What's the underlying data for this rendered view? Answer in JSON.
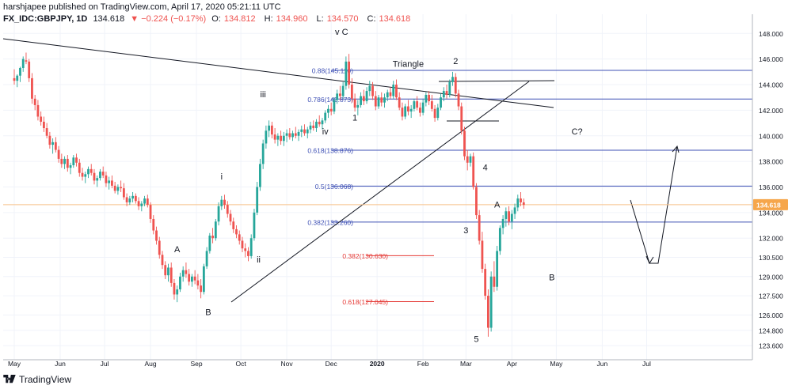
{
  "header": {
    "publisher_line": "harshjapee published on TradingView.com, April 17, 2020 05:21:11 UTC",
    "symbol": "FX_IDC:GBPJPY, 1D",
    "last": "134.618",
    "change": "▼ −0.224 (−0.17%)",
    "o_label": "O:",
    "o_value": "134.812",
    "h_label": "H:",
    "h_value": "134.960",
    "l_label": "L:",
    "l_value": "134.570",
    "c_label": "C:",
    "c_value": "134.618"
  },
  "footer": {
    "brand": "TradingView"
  },
  "colors": {
    "up": "#26a69a",
    "down": "#ef5350",
    "fib_blue": "#3f51b5",
    "fib_red": "#e53935",
    "price_line": "#f8c28a",
    "price_tag": "#f6a64b",
    "trendline": "#131722",
    "grid": "#f0f3fa"
  },
  "chart_data": {
    "type": "candlestick",
    "title": "",
    "price_axis": {
      "min": 122.5,
      "max": 149.5,
      "ticks": [
        "148.000",
        "146.000",
        "144.000",
        "142.000",
        "140.000",
        "138.000",
        "136.000",
        "134.000",
        "132.000",
        "130.500",
        "129.000",
        "127.500",
        "126.000",
        "124.800",
        "123.600"
      ]
    },
    "time_axis": {
      "labels": [
        "May",
        "Jun",
        "Jul",
        "Aug",
        "Sep",
        "Oct",
        "Nov",
        "Dec",
        "2020",
        "Feb",
        "Mar",
        "Apr",
        "May",
        "Jun",
        "Jul"
      ],
      "label_days": [
        0,
        31,
        61,
        92,
        123,
        153,
        184,
        214,
        245,
        276,
        305,
        336,
        366,
        397,
        427
      ]
    },
    "last_price": {
      "value": 134.618,
      "label": "134.618"
    },
    "fib_levels": [
      {
        "label": "0.88(145.110)",
        "value": 145.11,
        "color": "blue"
      },
      {
        "label": "0.786(142.873)",
        "value": 142.873,
        "color": "blue"
      },
      {
        "label": "0.618(138.876)",
        "value": 138.876,
        "color": "blue"
      },
      {
        "label": "0.5(136.068)",
        "value": 136.068,
        "color": "blue"
      },
      {
        "label": "0.382(133.260)",
        "value": 133.26,
        "color": "blue"
      },
      {
        "label": "0.382(130.630)",
        "value": 130.63,
        "color": "red"
      },
      {
        "label": "0.618(127.045)",
        "value": 127.045,
        "color": "red"
      }
    ],
    "wave_labels": [
      {
        "text": "v C",
        "day": 221,
        "price": 147.9
      },
      {
        "text": "Triangle",
        "day": 266,
        "price": 145.4
      },
      {
        "text": "2",
        "day": 298,
        "price": 145.6
      },
      {
        "text": "iii",
        "day": 168,
        "price": 143.0
      },
      {
        "text": "1",
        "day": 230,
        "price": 141.2
      },
      {
        "text": "iv",
        "day": 210,
        "price": 140.1
      },
      {
        "text": "i",
        "day": 140,
        "price": 136.6
      },
      {
        "text": "4",
        "day": 318,
        "price": 137.3
      },
      {
        "text": "C?",
        "day": 380,
        "price": 140.1
      },
      {
        "text": "A",
        "day": 326,
        "price": 134.4
      },
      {
        "text": "A",
        "day": 110,
        "price": 130.9
      },
      {
        "text": "3",
        "day": 305,
        "price": 132.4
      },
      {
        "text": "ii",
        "day": 165,
        "price": 130.1
      },
      {
        "text": "B",
        "day": 363,
        "price": 128.7
      },
      {
        "text": "B",
        "day": 131,
        "price": 126.0
      },
      {
        "text": "5",
        "day": 312,
        "price": 123.9
      }
    ],
    "candles": [
      [
        0,
        144.5,
        145.2,
        144.0,
        144.3
      ],
      [
        2,
        144.3,
        144.8,
        143.8,
        144.7
      ],
      [
        4,
        144.7,
        145.4,
        144.2,
        145.3
      ],
      [
        6,
        145.3,
        146.2,
        145.0,
        146.0
      ],
      [
        8,
        145.9,
        146.5,
        145.6,
        145.8
      ],
      [
        10,
        145.8,
        146.0,
        144.2,
        144.5
      ],
      [
        12,
        144.5,
        144.9,
        142.5,
        142.9
      ],
      [
        14,
        142.9,
        143.2,
        142.0,
        142.4
      ],
      [
        16,
        142.4,
        142.8,
        141.2,
        141.5
      ],
      [
        18,
        141.5,
        141.9,
        140.8,
        141.1
      ],
      [
        20,
        141.1,
        141.5,
        140.3,
        140.6
      ],
      [
        22,
        140.6,
        141.0,
        139.8,
        140.0
      ],
      [
        24,
        140.0,
        140.3,
        139.0,
        139.3
      ],
      [
        26,
        139.3,
        139.8,
        138.6,
        139.5
      ],
      [
        28,
        139.5,
        139.9,
        138.7,
        138.9
      ],
      [
        30,
        138.9,
        139.2,
        137.9,
        138.2
      ],
      [
        32,
        138.2,
        138.6,
        137.5,
        137.8
      ],
      [
        34,
        137.8,
        138.4,
        137.4,
        138.2
      ],
      [
        36,
        138.2,
        138.5,
        137.2,
        137.5
      ],
      [
        38,
        137.5,
        137.9,
        137.0,
        137.7
      ],
      [
        40,
        137.7,
        138.5,
        137.5,
        138.3
      ],
      [
        42,
        138.3,
        138.6,
        137.6,
        137.9
      ],
      [
        44,
        137.9,
        138.2,
        136.8,
        137.1
      ],
      [
        46,
        137.1,
        137.5,
        136.5,
        136.8
      ],
      [
        48,
        136.8,
        137.2,
        136.3,
        137.0
      ],
      [
        50,
        137.0,
        137.6,
        136.7,
        137.4
      ],
      [
        52,
        137.4,
        137.8,
        136.9,
        137.1
      ],
      [
        54,
        137.1,
        137.4,
        136.2,
        136.5
      ],
      [
        56,
        136.5,
        136.9,
        136.0,
        136.7
      ],
      [
        58,
        136.7,
        137.4,
        136.5,
        137.2
      ],
      [
        60,
        137.2,
        137.6,
        136.7,
        136.9
      ],
      [
        62,
        136.9,
        137.2,
        136.0,
        136.3
      ],
      [
        64,
        136.3,
        136.8,
        135.8,
        136.5
      ],
      [
        66,
        136.5,
        136.9,
        135.9,
        136.1
      ],
      [
        68,
        136.1,
        136.4,
        135.5,
        135.7
      ],
      [
        70,
        135.7,
        136.2,
        135.4,
        136.0
      ],
      [
        72,
        136.0,
        136.5,
        135.6,
        135.9
      ],
      [
        74,
        135.9,
        136.3,
        135.0,
        135.2
      ],
      [
        76,
        135.2,
        135.5,
        134.5,
        134.8
      ],
      [
        78,
        134.8,
        135.3,
        134.6,
        135.1
      ],
      [
        80,
        135.1,
        135.6,
        134.8,
        135.3
      ],
      [
        82,
        135.3,
        135.5,
        134.7,
        134.9
      ],
      [
        84,
        134.9,
        135.2,
        134.2,
        134.5
      ],
      [
        86,
        134.5,
        134.9,
        134.1,
        134.7
      ],
      [
        88,
        134.7,
        135.3,
        134.5,
        135.1
      ],
      [
        90,
        135.1,
        135.4,
        134.4,
        134.6
      ],
      [
        92,
        134.6,
        134.8,
        133.2,
        133.5
      ],
      [
        94,
        133.5,
        133.8,
        132.3,
        132.6
      ],
      [
        96,
        132.6,
        132.9,
        131.5,
        131.8
      ],
      [
        98,
        131.8,
        132.1,
        130.4,
        130.7
      ],
      [
        100,
        130.7,
        131.0,
        129.6,
        129.9
      ],
      [
        102,
        129.9,
        130.2,
        128.8,
        129.1
      ],
      [
        104,
        129.1,
        130.0,
        128.6,
        129.7
      ],
      [
        106,
        129.7,
        130.1,
        128.2,
        128.5
      ],
      [
        108,
        128.5,
        128.8,
        127.2,
        127.6
      ],
      [
        110,
        127.6,
        128.3,
        127.0,
        128.0
      ],
      [
        112,
        128.0,
        129.3,
        127.8,
        129.0
      ],
      [
        114,
        129.0,
        129.8,
        128.6,
        129.5
      ],
      [
        116,
        129.5,
        130.1,
        128.9,
        129.2
      ],
      [
        118,
        129.2,
        129.6,
        128.3,
        128.6
      ],
      [
        120,
        128.6,
        129.2,
        128.2,
        129.0
      ],
      [
        122,
        129.0,
        129.5,
        128.4,
        128.7
      ],
      [
        124,
        128.7,
        129.2,
        128.0,
        128.3
      ],
      [
        126,
        128.3,
        128.8,
        127.3,
        127.8
      ],
      [
        128,
        127.8,
        130.0,
        127.6,
        129.8
      ],
      [
        130,
        129.8,
        131.3,
        129.6,
        131.0
      ],
      [
        132,
        131.0,
        132.4,
        130.8,
        132.2
      ],
      [
        134,
        132.2,
        132.8,
        131.6,
        132.0
      ],
      [
        136,
        132.0,
        133.5,
        131.8,
        133.3
      ],
      [
        138,
        133.3,
        134.8,
        133.0,
        134.5
      ],
      [
        140,
        134.5,
        135.3,
        134.2,
        135.0
      ],
      [
        142,
        135.0,
        135.4,
        134.3,
        134.6
      ],
      [
        144,
        134.6,
        134.9,
        133.6,
        133.9
      ],
      [
        146,
        133.9,
        134.2,
        133.0,
        133.3
      ],
      [
        148,
        133.3,
        133.6,
        132.4,
        132.7
      ],
      [
        150,
        132.7,
        133.0,
        132.0,
        132.3
      ],
      [
        152,
        132.3,
        132.6,
        131.5,
        131.8
      ],
      [
        154,
        131.8,
        132.1,
        130.9,
        131.2
      ],
      [
        156,
        131.2,
        131.6,
        130.5,
        131.0
      ],
      [
        158,
        131.0,
        131.3,
        130.2,
        130.6
      ],
      [
        160,
        130.6,
        132.3,
        130.4,
        132.0
      ],
      [
        162,
        132.0,
        134.3,
        131.8,
        134.0
      ],
      [
        164,
        134.0,
        136.4,
        133.8,
        136.0
      ],
      [
        166,
        136.0,
        138.2,
        135.7,
        137.8
      ],
      [
        168,
        137.8,
        139.7,
        137.4,
        139.4
      ],
      [
        170,
        139.4,
        140.8,
        139.0,
        140.4
      ],
      [
        172,
        140.4,
        141.2,
        139.9,
        140.8
      ],
      [
        174,
        140.8,
        141.1,
        139.8,
        140.1
      ],
      [
        176,
        140.1,
        140.6,
        139.4,
        139.7
      ],
      [
        178,
        139.7,
        140.2,
        139.2,
        140.0
      ],
      [
        180,
        140.0,
        140.4,
        139.3,
        139.6
      ],
      [
        182,
        139.6,
        140.3,
        139.2,
        140.0
      ],
      [
        184,
        140.0,
        140.5,
        139.5,
        140.2
      ],
      [
        186,
        140.2,
        140.6,
        139.7,
        139.9
      ],
      [
        188,
        139.9,
        140.4,
        139.6,
        140.2
      ],
      [
        190,
        140.2,
        140.7,
        139.8,
        140.0
      ],
      [
        192,
        140.0,
        140.5,
        139.6,
        140.3
      ],
      [
        194,
        140.3,
        140.8,
        139.9,
        140.5
      ],
      [
        196,
        140.5,
        140.9,
        140.0,
        140.2
      ],
      [
        198,
        140.2,
        140.7,
        139.8,
        140.5
      ],
      [
        200,
        140.5,
        141.1,
        140.2,
        140.8
      ],
      [
        202,
        140.8,
        141.2,
        140.4,
        140.6
      ],
      [
        204,
        140.6,
        141.3,
        140.3,
        141.1
      ],
      [
        206,
        141.1,
        141.6,
        140.7,
        140.9
      ],
      [
        208,
        140.9,
        141.4,
        140.5,
        141.2
      ],
      [
        210,
        141.2,
        142.0,
        141.0,
        141.8
      ],
      [
        212,
        141.8,
        142.4,
        141.4,
        142.1
      ],
      [
        214,
        142.1,
        142.6,
        141.6,
        141.9
      ],
      [
        216,
        141.9,
        143.0,
        141.7,
        142.8
      ],
      [
        218,
        142.8,
        143.6,
        142.5,
        143.3
      ],
      [
        220,
        143.3,
        143.9,
        142.8,
        143.1
      ],
      [
        222,
        143.1,
        144.2,
        142.9,
        143.9
      ],
      [
        224,
        143.9,
        146.2,
        143.6,
        145.8
      ],
      [
        226,
        145.8,
        146.4,
        143.7,
        144.0
      ],
      [
        228,
        144.0,
        144.5,
        142.6,
        142.9
      ],
      [
        230,
        142.9,
        143.3,
        141.9,
        142.2
      ],
      [
        232,
        142.2,
        142.8,
        141.6,
        142.4
      ],
      [
        234,
        142.4,
        143.4,
        142.2,
        143.1
      ],
      [
        236,
        143.1,
        143.6,
        142.4,
        142.7
      ],
      [
        238,
        142.7,
        143.8,
        142.5,
        143.5
      ],
      [
        240,
        143.5,
        144.3,
        143.1,
        143.9
      ],
      [
        242,
        143.9,
        144.2,
        142.8,
        143.1
      ],
      [
        244,
        143.1,
        143.5,
        142.0,
        142.3
      ],
      [
        246,
        142.3,
        143.2,
        142.1,
        143.0
      ],
      [
        248,
        143.0,
        143.4,
        142.3,
        142.6
      ],
      [
        250,
        142.6,
        143.3,
        142.2,
        143.0
      ],
      [
        252,
        143.0,
        143.6,
        142.7,
        143.4
      ],
      [
        254,
        143.4,
        143.8,
        142.9,
        143.1
      ],
      [
        256,
        143.1,
        144.3,
        142.9,
        144.0
      ],
      [
        258,
        144.0,
        144.4,
        142.8,
        143.0
      ],
      [
        260,
        143.0,
        143.4,
        142.0,
        142.2
      ],
      [
        262,
        142.2,
        142.6,
        141.2,
        141.5
      ],
      [
        264,
        141.5,
        142.5,
        141.3,
        142.3
      ],
      [
        266,
        142.3,
        142.8,
        141.6,
        141.9
      ],
      [
        268,
        141.9,
        142.4,
        141.4,
        142.1
      ],
      [
        270,
        142.1,
        142.9,
        141.9,
        142.7
      ],
      [
        272,
        142.7,
        143.1,
        142.0,
        142.2
      ],
      [
        274,
        142.2,
        142.6,
        141.5,
        141.8
      ],
      [
        276,
        141.8,
        142.9,
        141.6,
        142.6
      ],
      [
        278,
        142.6,
        143.4,
        142.3,
        143.2
      ],
      [
        280,
        143.2,
        143.5,
        142.4,
        142.7
      ],
      [
        282,
        142.7,
        143.2,
        141.9,
        142.1
      ],
      [
        284,
        142.1,
        142.4,
        141.1,
        141.4
      ],
      [
        286,
        141.4,
        142.5,
        141.2,
        142.2
      ],
      [
        288,
        142.2,
        143.3,
        142.0,
        143.0
      ],
      [
        290,
        143.0,
        143.8,
        142.7,
        143.5
      ],
      [
        292,
        143.5,
        144.0,
        142.9,
        143.2
      ],
      [
        294,
        143.2,
        144.4,
        143.0,
        144.2
      ],
      [
        296,
        144.2,
        145.0,
        143.9,
        144.6
      ],
      [
        298,
        144.6,
        144.9,
        143.0,
        143.3
      ],
      [
        300,
        143.3,
        143.6,
        142.0,
        142.3
      ],
      [
        302,
        142.3,
        142.6,
        140.1,
        140.4
      ],
      [
        304,
        140.4,
        140.7,
        138.1,
        138.4
      ],
      [
        306,
        138.4,
        138.9,
        137.3,
        137.9
      ],
      [
        308,
        137.9,
        138.6,
        137.6,
        138.4
      ],
      [
        310,
        138.4,
        138.7,
        135.8,
        136.0
      ],
      [
        312,
        136.0,
        136.3,
        133.5,
        133.8
      ],
      [
        314,
        133.8,
        134.2,
        131.5,
        131.8
      ],
      [
        316,
        131.8,
        132.5,
        129.3,
        129.6
      ],
      [
        318,
        129.6,
        130.0,
        127.2,
        127.5
      ],
      [
        320,
        127.5,
        128.0,
        124.3,
        125.0
      ],
      [
        322,
        125.0,
        129.4,
        124.7,
        129.0
      ],
      [
        324,
        129.0,
        130.2,
        127.8,
        128.2
      ],
      [
        326,
        128.2,
        131.4,
        127.9,
        131.0
      ],
      [
        328,
        131.0,
        133.0,
        130.7,
        132.8
      ],
      [
        330,
        132.8,
        133.8,
        132.3,
        133.5
      ],
      [
        332,
        133.5,
        134.4,
        132.9,
        134.1
      ],
      [
        334,
        134.1,
        134.5,
        133.0,
        133.3
      ],
      [
        336,
        133.3,
        134.2,
        132.7,
        133.9
      ],
      [
        338,
        133.9,
        134.7,
        133.5,
        134.4
      ],
      [
        340,
        134.4,
        135.4,
        134.1,
        135.1
      ],
      [
        342,
        135.1,
        135.6,
        134.5,
        134.8
      ],
      [
        344,
        134.8,
        135.1,
        134.3,
        134.6
      ]
    ]
  }
}
